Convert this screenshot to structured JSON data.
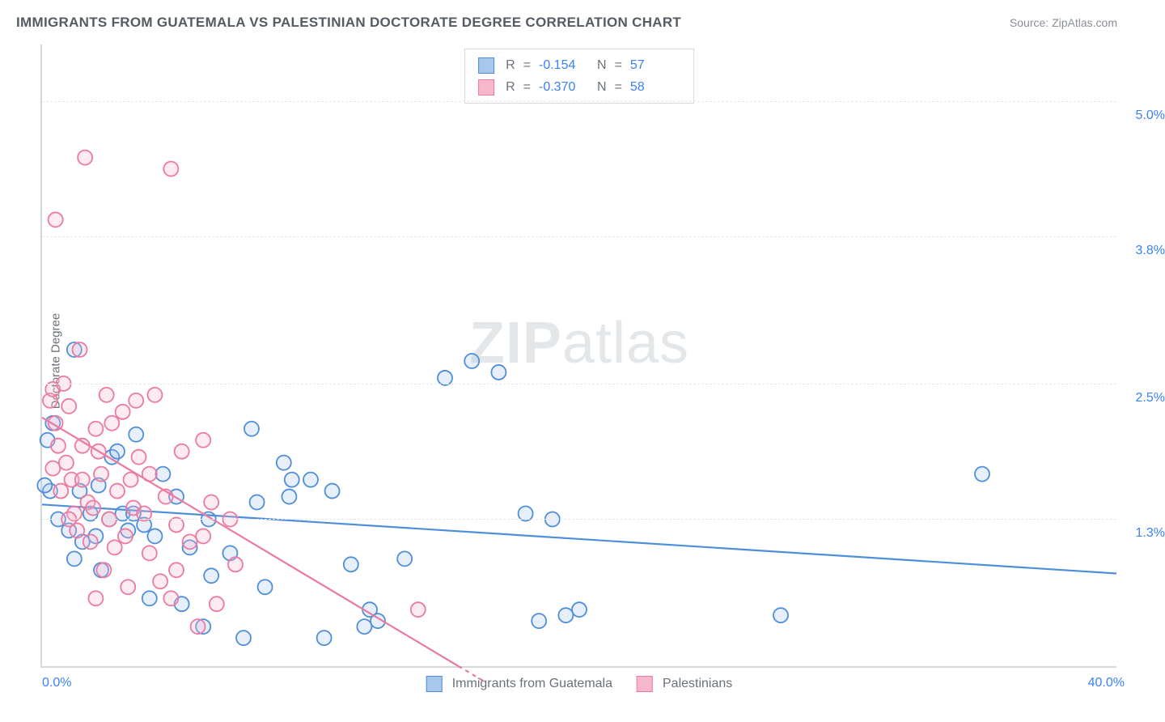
{
  "title": "IMMIGRANTS FROM GUATEMALA VS PALESTINIAN DOCTORATE DEGREE CORRELATION CHART",
  "source": "Source: ZipAtlas.com",
  "watermark_prefix": "ZIP",
  "watermark_suffix": "atlas",
  "y_axis_title": "Doctorate Degree",
  "chart": {
    "type": "scatter",
    "x_range": [
      0,
      40
    ],
    "y_range": [
      0,
      5.5
    ],
    "x_ticks": [
      {
        "v": 0,
        "label": "0.0%"
      },
      {
        "v": 40,
        "label": "40.0%"
      }
    ],
    "y_ticks": [
      {
        "v": 1.3,
        "label": "1.3%"
      },
      {
        "v": 2.5,
        "label": "2.5%"
      },
      {
        "v": 3.8,
        "label": "3.8%"
      },
      {
        "v": 5.0,
        "label": "5.0%"
      }
    ],
    "background_color": "#ffffff",
    "grid_color": "#e6e8eb",
    "axis_color": "#d5d8dc",
    "tick_label_color": "#3b82f6",
    "marker_radius": 9,
    "marker_stroke_width": 1.8,
    "marker_fill_opacity": 0.28,
    "line_width": 2.2,
    "series": [
      {
        "name": "Immigrants from Guatemala",
        "color_stroke": "#4f8fd9",
        "color_fill": "#a7c7ee",
        "R": "-0.154",
        "N": "57",
        "regression": {
          "x1": 0,
          "y1": 1.43,
          "x2": 40,
          "y2": 0.82
        },
        "points": [
          [
            0.2,
            2.0
          ],
          [
            0.3,
            1.55
          ],
          [
            0.4,
            2.15
          ],
          [
            0.6,
            1.3
          ],
          [
            1.0,
            1.2
          ],
          [
            1.2,
            0.95
          ],
          [
            1.4,
            1.55
          ],
          [
            1.2,
            2.8
          ],
          [
            1.8,
            1.35
          ],
          [
            2.0,
            1.15
          ],
          [
            2.1,
            1.6
          ],
          [
            2.2,
            0.85
          ],
          [
            2.5,
            1.3
          ],
          [
            2.6,
            1.85
          ],
          [
            3.0,
            1.35
          ],
          [
            3.2,
            1.2
          ],
          [
            3.4,
            1.35
          ],
          [
            3.5,
            2.05
          ],
          [
            3.8,
            1.25
          ],
          [
            4.0,
            0.6
          ],
          [
            4.2,
            1.15
          ],
          [
            4.5,
            1.7
          ],
          [
            5.0,
            1.5
          ],
          [
            5.2,
            0.55
          ],
          [
            5.5,
            1.05
          ],
          [
            6.0,
            0.35
          ],
          [
            6.2,
            1.3
          ],
          [
            6.3,
            0.8
          ],
          [
            7.0,
            1.0
          ],
          [
            7.5,
            0.25
          ],
          [
            7.8,
            2.1
          ],
          [
            8.0,
            1.45
          ],
          [
            8.3,
            0.7
          ],
          [
            9.0,
            1.8
          ],
          [
            9.2,
            1.5
          ],
          [
            9.3,
            1.65
          ],
          [
            10.0,
            1.65
          ],
          [
            10.5,
            0.25
          ],
          [
            10.8,
            1.55
          ],
          [
            11.5,
            0.9
          ],
          [
            12.0,
            0.35
          ],
          [
            12.2,
            0.5
          ],
          [
            12.5,
            0.4
          ],
          [
            13.5,
            0.95
          ],
          [
            15.0,
            2.55
          ],
          [
            16.0,
            2.7
          ],
          [
            17.0,
            2.6
          ],
          [
            18.0,
            1.35
          ],
          [
            19.0,
            1.3
          ],
          [
            18.5,
            0.4
          ],
          [
            19.5,
            0.45
          ],
          [
            20.0,
            0.5
          ],
          [
            27.5,
            0.45
          ],
          [
            35.0,
            1.7
          ],
          [
            0.1,
            1.6
          ],
          [
            1.5,
            1.1
          ],
          [
            2.8,
            1.9
          ]
        ]
      },
      {
        "name": "Palestinians",
        "color_stroke": "#ec7aa0",
        "color_fill": "#f7b8cc",
        "R": "-0.370",
        "N": "58",
        "regression": {
          "x1": 0,
          "y1": 2.2,
          "x2": 15.5,
          "y2": 0.0
        },
        "regression_dash_extend": {
          "x1": 15.5,
          "y1": 0.0,
          "x2": 16.5,
          "y2": -0.14
        },
        "points": [
          [
            0.3,
            2.35
          ],
          [
            0.4,
            2.45
          ],
          [
            0.5,
            2.15
          ],
          [
            0.6,
            1.95
          ],
          [
            0.7,
            1.55
          ],
          [
            0.8,
            2.5
          ],
          [
            0.9,
            1.8
          ],
          [
            1.0,
            2.3
          ],
          [
            1.1,
            1.65
          ],
          [
            1.2,
            1.35
          ],
          [
            1.3,
            1.2
          ],
          [
            1.4,
            2.8
          ],
          [
            1.5,
            1.95
          ],
          [
            1.6,
            4.5
          ],
          [
            1.7,
            1.45
          ],
          [
            1.8,
            1.1
          ],
          [
            2.0,
            2.1
          ],
          [
            2.1,
            1.9
          ],
          [
            2.2,
            1.7
          ],
          [
            2.3,
            0.85
          ],
          [
            2.4,
            2.4
          ],
          [
            2.5,
            1.3
          ],
          [
            2.6,
            2.15
          ],
          [
            2.8,
            1.55
          ],
          [
            3.0,
            2.25
          ],
          [
            3.1,
            1.15
          ],
          [
            3.2,
            0.7
          ],
          [
            3.4,
            1.4
          ],
          [
            3.6,
            1.85
          ],
          [
            3.8,
            1.35
          ],
          [
            4.0,
            1.0
          ],
          [
            4.2,
            2.4
          ],
          [
            4.4,
            0.75
          ],
          [
            4.6,
            1.5
          ],
          [
            4.8,
            0.6
          ],
          [
            5.0,
            1.25
          ],
          [
            5.2,
            1.9
          ],
          [
            5.5,
            1.1
          ],
          [
            5.8,
            0.35
          ],
          [
            6.0,
            2.0
          ],
          [
            6.3,
            1.45
          ],
          [
            6.5,
            0.55
          ],
          [
            7.0,
            1.3
          ],
          [
            7.2,
            0.9
          ],
          [
            4.8,
            4.4
          ],
          [
            0.5,
            3.95
          ],
          [
            1.0,
            1.3
          ],
          [
            1.5,
            1.65
          ],
          [
            2.0,
            0.6
          ],
          [
            3.5,
            2.35
          ],
          [
            5.0,
            0.85
          ],
          [
            6.0,
            1.15
          ],
          [
            14.0,
            0.5
          ],
          [
            4.0,
            1.7
          ],
          [
            3.3,
            1.65
          ],
          [
            2.7,
            1.05
          ],
          [
            1.9,
            1.4
          ],
          [
            0.4,
            1.75
          ]
        ]
      }
    ]
  },
  "legend": {
    "series1_label": "Immigrants from Guatemala",
    "series2_label": "Palestinians"
  },
  "stats_labels": {
    "R": "R",
    "eq": "=",
    "N": "N"
  }
}
